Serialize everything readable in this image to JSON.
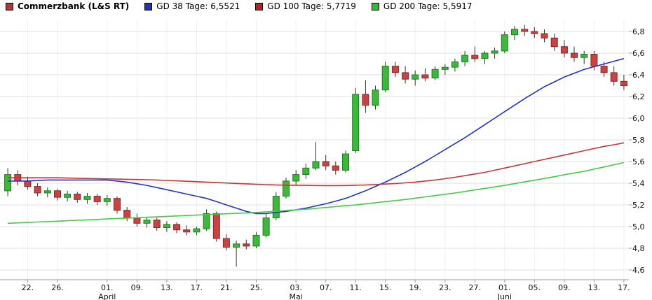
{
  "legend": {
    "series": [
      {
        "label": "Commerzbank (L&S RT)",
        "color": "#bb3333",
        "bold": true
      },
      {
        "label": "GD 38 Tage: 6,5521",
        "color": "#2233bb",
        "bold": false
      },
      {
        "label": "GD 100 Tage: 5,7719",
        "color": "#bb2222",
        "bold": false
      },
      {
        "label": "GD 200 Tage: 5,5917",
        "color": "#33bb33",
        "bold": false
      }
    ]
  },
  "chart_data": {
    "type": "candlestick",
    "title": "Commerzbank (L&S RT)",
    "y_axis": {
      "min": 4.6,
      "max": 6.8,
      "step": 0.2,
      "labels": [
        "6,8",
        "6,6",
        "6,4",
        "6,2",
        "6,0",
        "5,8",
        "5,6",
        "5,4",
        "5,2",
        "5,0",
        "4,8",
        "4,6"
      ]
    },
    "x_axis": {
      "tick_labels": [
        "22.",
        "26.",
        "01.",
        "09.",
        "13.",
        "17.",
        "21.",
        "25.",
        "03.",
        "07.",
        "11.",
        "15.",
        "19.",
        "23.",
        "27.",
        "01.",
        "05.",
        "09.",
        "13.",
        "17."
      ],
      "tick_indices": [
        2,
        5,
        10,
        13,
        16,
        19,
        22,
        25,
        29,
        32,
        35,
        38,
        41,
        44,
        47,
        50,
        53,
        56,
        59,
        62
      ],
      "month_labels": [
        {
          "label": "April",
          "index": 10
        },
        {
          "label": "Mai",
          "index": 29
        },
        {
          "label": "Juni",
          "index": 50
        }
      ]
    },
    "candles": [
      [
        5.33,
        5.54,
        5.28,
        5.48
      ],
      [
        5.48,
        5.52,
        5.38,
        5.42
      ],
      [
        5.42,
        5.46,
        5.34,
        5.37
      ],
      [
        5.37,
        5.4,
        5.28,
        5.31
      ],
      [
        5.31,
        5.36,
        5.27,
        5.33
      ],
      [
        5.33,
        5.35,
        5.24,
        5.27
      ],
      [
        5.27,
        5.33,
        5.23,
        5.3
      ],
      [
        5.3,
        5.32,
        5.22,
        5.25
      ],
      [
        5.25,
        5.31,
        5.21,
        5.28
      ],
      [
        5.28,
        5.3,
        5.2,
        5.23
      ],
      [
        5.23,
        5.29,
        5.19,
        5.26
      ],
      [
        5.26,
        5.28,
        5.12,
        5.15
      ],
      [
        5.15,
        5.18,
        5.05,
        5.08
      ],
      [
        5.08,
        5.12,
        5.0,
        5.03
      ],
      [
        5.03,
        5.09,
        4.99,
        5.06
      ],
      [
        5.06,
        5.08,
        4.96,
        4.99
      ],
      [
        4.99,
        5.05,
        4.95,
        5.02
      ],
      [
        5.02,
        5.04,
        4.94,
        4.97
      ],
      [
        4.97,
        5.01,
        4.92,
        4.95
      ],
      [
        4.95,
        5.0,
        4.92,
        4.98
      ],
      [
        4.98,
        5.16,
        4.96,
        5.12
      ],
      [
        5.12,
        5.14,
        4.86,
        4.89
      ],
      [
        4.89,
        4.93,
        4.78,
        4.81
      ],
      [
        4.81,
        4.87,
        4.63,
        4.84
      ],
      [
        4.84,
        4.88,
        4.79,
        4.82
      ],
      [
        4.82,
        4.95,
        4.8,
        4.92
      ],
      [
        4.92,
        5.12,
        4.9,
        5.08
      ],
      [
        5.08,
        5.32,
        5.06,
        5.28
      ],
      [
        5.28,
        5.45,
        5.26,
        5.42
      ],
      [
        5.42,
        5.52,
        5.38,
        5.48
      ],
      [
        5.48,
        5.58,
        5.44,
        5.54
      ],
      [
        5.54,
        5.78,
        5.52,
        5.6
      ],
      [
        5.6,
        5.66,
        5.52,
        5.56
      ],
      [
        5.56,
        5.6,
        5.48,
        5.52
      ],
      [
        5.52,
        5.7,
        5.5,
        5.67
      ],
      [
        5.7,
        6.28,
        5.68,
        6.22
      ],
      [
        6.22,
        6.35,
        6.05,
        6.12
      ],
      [
        6.12,
        6.3,
        6.08,
        6.26
      ],
      [
        6.26,
        6.52,
        6.24,
        6.48
      ],
      [
        6.48,
        6.52,
        6.38,
        6.42
      ],
      [
        6.42,
        6.48,
        6.32,
        6.36
      ],
      [
        6.36,
        6.44,
        6.3,
        6.4
      ],
      [
        6.4,
        6.46,
        6.34,
        6.37
      ],
      [
        6.37,
        6.48,
        6.35,
        6.45
      ],
      [
        6.45,
        6.5,
        6.4,
        6.47
      ],
      [
        6.47,
        6.55,
        6.43,
        6.52
      ],
      [
        6.52,
        6.62,
        6.48,
        6.58
      ],
      [
        6.58,
        6.66,
        6.52,
        6.55
      ],
      [
        6.55,
        6.62,
        6.5,
        6.6
      ],
      [
        6.6,
        6.65,
        6.55,
        6.62
      ],
      [
        6.62,
        6.8,
        6.6,
        6.77
      ],
      [
        6.77,
        6.85,
        6.72,
        6.82
      ],
      [
        6.82,
        6.86,
        6.76,
        6.8
      ],
      [
        6.8,
        6.84,
        6.74,
        6.78
      ],
      [
        6.78,
        6.82,
        6.7,
        6.74
      ],
      [
        6.74,
        6.78,
        6.62,
        6.66
      ],
      [
        6.66,
        6.72,
        6.56,
        6.6
      ],
      [
        6.6,
        6.66,
        6.52,
        6.56
      ],
      [
        6.56,
        6.62,
        6.5,
        6.59
      ],
      [
        6.59,
        6.62,
        6.44,
        6.48
      ],
      [
        6.48,
        6.52,
        6.38,
        6.42
      ],
      [
        6.42,
        6.48,
        6.3,
        6.34
      ],
      [
        6.34,
        6.4,
        6.26,
        6.3
      ]
    ],
    "moving_averages": [
      {
        "name": "GD 38 Tage",
        "value_label": "6,5521",
        "color": "#2233cc",
        "values": [
          5.42,
          5.42,
          5.42,
          5.425,
          5.43,
          5.43,
          5.43,
          5.43,
          5.43,
          5.43,
          5.43,
          5.42,
          5.41,
          5.395,
          5.38,
          5.36,
          5.34,
          5.32,
          5.3,
          5.28,
          5.26,
          5.23,
          5.2,
          5.17,
          5.14,
          5.12,
          5.12,
          5.13,
          5.14,
          5.155,
          5.17,
          5.19,
          5.21,
          5.235,
          5.26,
          5.295,
          5.33,
          5.37,
          5.41,
          5.455,
          5.5,
          5.55,
          5.6,
          5.655,
          5.71,
          5.765,
          5.82,
          5.88,
          5.94,
          6.0,
          6.06,
          6.12,
          6.18,
          6.235,
          6.29,
          6.335,
          6.38,
          6.415,
          6.45,
          6.475,
          6.5,
          6.525,
          6.55
        ]
      },
      {
        "name": "GD 100 Tage",
        "value_label": "5,7719",
        "color": "#cc3333",
        "values": [
          5.45,
          5.45,
          5.45,
          5.45,
          5.45,
          5.45,
          5.448,
          5.446,
          5.444,
          5.442,
          5.44,
          5.438,
          5.436,
          5.434,
          5.432,
          5.43,
          5.426,
          5.422,
          5.418,
          5.414,
          5.41,
          5.406,
          5.402,
          5.398,
          5.394,
          5.39,
          5.387,
          5.384,
          5.382,
          5.381,
          5.38,
          5.379,
          5.378,
          5.378,
          5.379,
          5.381,
          5.384,
          5.388,
          5.392,
          5.397,
          5.403,
          5.41,
          5.42,
          5.43,
          5.442,
          5.455,
          5.47,
          5.485,
          5.5,
          5.52,
          5.54,
          5.56,
          5.58,
          5.6,
          5.62,
          5.64,
          5.66,
          5.68,
          5.7,
          5.72,
          5.74,
          5.755,
          5.772
        ]
      },
      {
        "name": "GD 200 Tage",
        "value_label": "5,5917",
        "color": "#44cc44",
        "values": [
          5.03,
          5.034,
          5.038,
          5.042,
          5.046,
          5.05,
          5.054,
          5.058,
          5.062,
          5.066,
          5.07,
          5.074,
          5.078,
          5.082,
          5.086,
          5.09,
          5.094,
          5.098,
          5.102,
          5.106,
          5.11,
          5.114,
          5.118,
          5.122,
          5.126,
          5.13,
          5.136,
          5.142,
          5.148,
          5.154,
          5.16,
          5.168,
          5.176,
          5.184,
          5.192,
          5.2,
          5.21,
          5.22,
          5.23,
          5.24,
          5.25,
          5.262,
          5.274,
          5.286,
          5.298,
          5.31,
          5.324,
          5.338,
          5.352,
          5.366,
          5.38,
          5.396,
          5.412,
          5.428,
          5.444,
          5.46,
          5.478,
          5.494,
          5.51,
          5.53,
          5.55,
          5.57,
          5.59
        ]
      }
    ],
    "colors": {
      "up": "#3db83d",
      "up_border": "#1e7d1e",
      "down": "#c84343",
      "down_border": "#8c2626",
      "wick": "#333333",
      "grid": "#e2e2e2",
      "grid_vertical": "#efefef",
      "axis": "#999999",
      "axis_text": "#111111"
    }
  }
}
